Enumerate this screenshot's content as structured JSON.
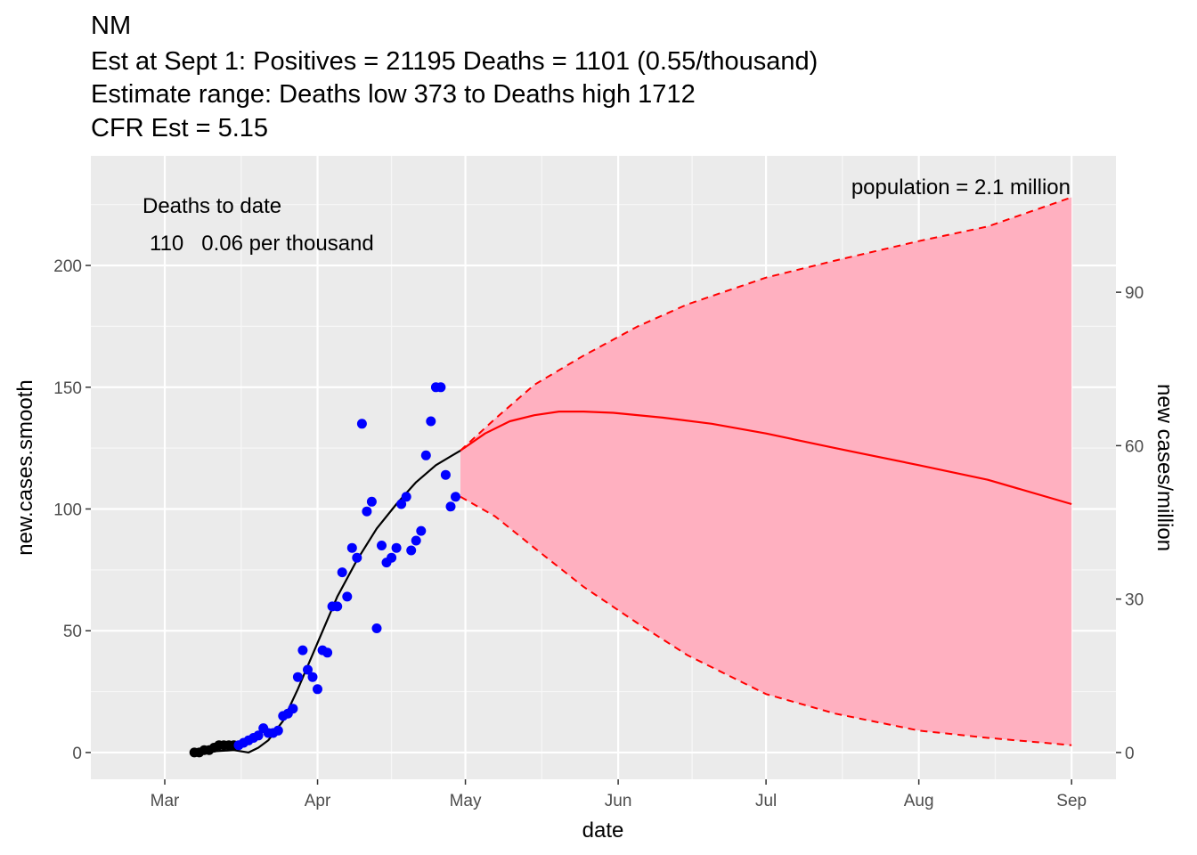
{
  "chart_data": {
    "type": "line",
    "title_lines": [
      "NM",
      "Est at Sept 1: Positives = 21195 Deaths = 1101 (0.55/thousand)",
      "Estimate range: Deaths low 373 to Deaths high 1712",
      "CFR Est = 5.15"
    ],
    "xlabel": "date",
    "ylabel": "new.cases.smooth",
    "y2label": "new cases/million",
    "x_ticks": [
      {
        "label": "Mar",
        "date": "2020-03-01"
      },
      {
        "label": "Apr",
        "date": "2020-04-01"
      },
      {
        "label": "May",
        "date": "2020-05-01"
      },
      {
        "label": "Jun",
        "date": "2020-06-01"
      },
      {
        "label": "Jul",
        "date": "2020-07-01"
      },
      {
        "label": "Aug",
        "date": "2020-08-01"
      },
      {
        "label": "Sep",
        "date": "2020-09-01"
      }
    ],
    "xlim": [
      "2020-02-15",
      "2020-09-10"
    ],
    "y_ticks": [
      0,
      50,
      100,
      150,
      200
    ],
    "ylim": [
      -11,
      245
    ],
    "y2_ticks": [
      0,
      30,
      60,
      90
    ],
    "y2_scale": 2.1,
    "grid": true,
    "annotations": {
      "deaths_header": "Deaths to date",
      "deaths_value": "110   0.06 per thousand",
      "population": "population = 2.1 million"
    },
    "series": [
      {
        "kind": "points",
        "color": "#000000",
        "points": [
          [
            "2020-03-07",
            0
          ],
          [
            "2020-03-08",
            0
          ],
          [
            "2020-03-09",
            1
          ],
          [
            "2020-03-10",
            1
          ],
          [
            "2020-03-11",
            2
          ],
          [
            "2020-03-12",
            3
          ],
          [
            "2020-03-13",
            3
          ],
          [
            "2020-03-14",
            3
          ],
          [
            "2020-03-15",
            3
          ]
        ]
      },
      {
        "kind": "points",
        "color": "#0000ff",
        "points": [
          [
            "2020-03-16",
            3
          ],
          [
            "2020-03-17",
            4
          ],
          [
            "2020-03-18",
            5
          ],
          [
            "2020-03-19",
            6
          ],
          [
            "2020-03-20",
            7
          ],
          [
            "2020-03-21",
            10
          ],
          [
            "2020-03-22",
            8
          ],
          [
            "2020-03-23",
            8
          ],
          [
            "2020-03-24",
            9
          ],
          [
            "2020-03-25",
            15
          ],
          [
            "2020-03-26",
            16
          ],
          [
            "2020-03-27",
            18
          ],
          [
            "2020-03-28",
            31
          ],
          [
            "2020-03-29",
            42
          ],
          [
            "2020-03-30",
            34
          ],
          [
            "2020-03-31",
            31
          ],
          [
            "2020-04-01",
            26
          ],
          [
            "2020-04-02",
            42
          ],
          [
            "2020-04-03",
            41
          ],
          [
            "2020-04-04",
            60
          ],
          [
            "2020-04-05",
            60
          ],
          [
            "2020-04-06",
            74
          ],
          [
            "2020-04-07",
            64
          ],
          [
            "2020-04-08",
            84
          ],
          [
            "2020-04-09",
            80
          ],
          [
            "2020-04-10",
            135
          ],
          [
            "2020-04-11",
            99
          ],
          [
            "2020-04-12",
            103
          ],
          [
            "2020-04-13",
            51
          ],
          [
            "2020-04-14",
            85
          ],
          [
            "2020-04-15",
            78
          ],
          [
            "2020-04-16",
            80
          ],
          [
            "2020-04-17",
            84
          ],
          [
            "2020-04-18",
            102
          ],
          [
            "2020-04-19",
            105
          ],
          [
            "2020-04-20",
            83
          ],
          [
            "2020-04-21",
            87
          ],
          [
            "2020-04-22",
            91
          ],
          [
            "2020-04-23",
            122
          ],
          [
            "2020-04-24",
            136
          ],
          [
            "2020-04-25",
            150
          ],
          [
            "2020-04-26",
            150
          ],
          [
            "2020-04-27",
            114
          ],
          [
            "2020-04-28",
            101
          ],
          [
            "2020-04-29",
            105
          ]
        ]
      },
      {
        "kind": "line",
        "color": "#000000",
        "points": [
          [
            "2020-03-07",
            0
          ],
          [
            "2020-03-15",
            1
          ],
          [
            "2020-03-18",
            0
          ],
          [
            "2020-03-20",
            2
          ],
          [
            "2020-03-22",
            5
          ],
          [
            "2020-03-25",
            13
          ],
          [
            "2020-03-28",
            26
          ],
          [
            "2020-04-01",
            45
          ],
          [
            "2020-04-05",
            64
          ],
          [
            "2020-04-09",
            79
          ],
          [
            "2020-04-13",
            92
          ],
          [
            "2020-04-17",
            102
          ],
          [
            "2020-04-21",
            111
          ],
          [
            "2020-04-25",
            118
          ],
          [
            "2020-04-30",
            124
          ]
        ]
      },
      {
        "kind": "line",
        "color": "#ff0000",
        "points": [
          [
            "2020-04-30",
            124
          ],
          [
            "2020-05-05",
            131
          ],
          [
            "2020-05-10",
            136
          ],
          [
            "2020-05-15",
            138.5
          ],
          [
            "2020-05-20",
            140
          ],
          [
            "2020-05-25",
            140
          ],
          [
            "2020-05-31",
            139.5
          ],
          [
            "2020-06-10",
            137.5
          ],
          [
            "2020-06-20",
            135
          ],
          [
            "2020-07-01",
            131
          ],
          [
            "2020-07-15",
            125
          ],
          [
            "2020-08-01",
            118
          ],
          [
            "2020-08-15",
            112
          ],
          [
            "2020-09-01",
            102
          ]
        ]
      },
      {
        "kind": "band",
        "color": "#ffb0c0",
        "edge_color": "#ff0000",
        "upper": [
          [
            "2020-04-30",
            124
          ],
          [
            "2020-05-07",
            137
          ],
          [
            "2020-05-15",
            151
          ],
          [
            "2020-05-25",
            163
          ],
          [
            "2020-06-05",
            175
          ],
          [
            "2020-06-15",
            184
          ],
          [
            "2020-07-01",
            195
          ],
          [
            "2020-07-15",
            202
          ],
          [
            "2020-08-01",
            210
          ],
          [
            "2020-08-15",
            216
          ],
          [
            "2020-09-01",
            228
          ]
        ],
        "lower": [
          [
            "2020-04-30",
            105
          ],
          [
            "2020-05-07",
            97
          ],
          [
            "2020-05-15",
            84
          ],
          [
            "2020-05-25",
            68
          ],
          [
            "2020-06-05",
            53
          ],
          [
            "2020-06-15",
            40
          ],
          [
            "2020-07-01",
            24
          ],
          [
            "2020-07-15",
            16
          ],
          [
            "2020-08-01",
            9
          ],
          [
            "2020-08-15",
            6
          ],
          [
            "2020-09-01",
            3
          ]
        ]
      }
    ]
  }
}
